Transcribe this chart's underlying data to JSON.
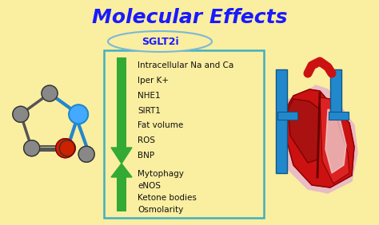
{
  "title": "Molecular Effects",
  "title_color": "#1a1aff",
  "title_fontsize": 18,
  "bg_color": "#faeea0",
  "sglt2i_label": "SGLT2i",
  "sglt2i_color": "#1a1aff",
  "box_edge_color": "#40b0c0",
  "down_items": [
    "Intracellular Na and Ca",
    "Iper K+",
    "NHE1",
    "SIRT1",
    "Fat volume",
    "ROS",
    "BNP"
  ],
  "up_items": [
    "Mytophagy",
    "eNOS",
    "Ketone bodies",
    "Osmolarity"
  ],
  "arrow_color": "#33aa33",
  "text_color": "#111111",
  "item_fontsize": 7.5,
  "mol_bond_color": "#555555",
  "mol_blue_color": "#2288cc",
  "mol_gray_color": "#888888",
  "mol_red_color": "#cc2200",
  "mol_blue_atom_color": "#44aaff"
}
